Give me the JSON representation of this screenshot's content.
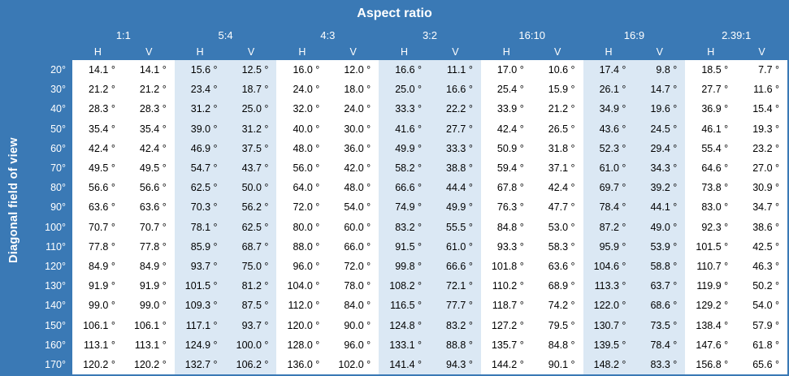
{
  "colors": {
    "header_blue": "#3A79B5",
    "band_light_blue": "#DBE8F4",
    "band_white": "#FFFFFF",
    "body_text": "#000000",
    "header_text": "#FFFFFF"
  },
  "chart_data": {
    "type": "table",
    "title": "Aspect ratio",
    "row_axis_label": "Diagonal field of view",
    "column_groups": [
      "1:1",
      "5:4",
      "4:3",
      "3:2",
      "16:10",
      "16:9",
      "2.39:1"
    ],
    "subcolumns": [
      "H",
      "V"
    ],
    "row_labels": [
      "20°",
      "30°",
      "40°",
      "50°",
      "60°",
      "70°",
      "80°",
      "90°",
      "100°",
      "110°",
      "120°",
      "130°",
      "140°",
      "150°",
      "160°",
      "170°"
    ],
    "rows": [
      [
        "14.1 °",
        "14.1 °",
        "15.6 °",
        "12.5 °",
        "16.0 °",
        "12.0 °",
        "16.6 °",
        "11.1 °",
        "17.0 °",
        "10.6 °",
        "17.4 °",
        "9.8 °",
        "18.5 °",
        "7.7 °"
      ],
      [
        "21.2 °",
        "21.2 °",
        "23.4 °",
        "18.7 °",
        "24.0 °",
        "18.0 °",
        "25.0 °",
        "16.6 °",
        "25.4 °",
        "15.9 °",
        "26.1 °",
        "14.7 °",
        "27.7 °",
        "11.6 °"
      ],
      [
        "28.3 °",
        "28.3 °",
        "31.2 °",
        "25.0 °",
        "32.0 °",
        "24.0 °",
        "33.3 °",
        "22.2 °",
        "33.9 °",
        "21.2 °",
        "34.9 °",
        "19.6 °",
        "36.9 °",
        "15.4 °"
      ],
      [
        "35.4 °",
        "35.4 °",
        "39.0 °",
        "31.2 °",
        "40.0 °",
        "30.0 °",
        "41.6 °",
        "27.7 °",
        "42.4 °",
        "26.5 °",
        "43.6 °",
        "24.5 °",
        "46.1 °",
        "19.3 °"
      ],
      [
        "42.4 °",
        "42.4 °",
        "46.9 °",
        "37.5 °",
        "48.0 °",
        "36.0 °",
        "49.9 °",
        "33.3 °",
        "50.9 °",
        "31.8 °",
        "52.3 °",
        "29.4 °",
        "55.4 °",
        "23.2 °"
      ],
      [
        "49.5 °",
        "49.5 °",
        "54.7 °",
        "43.7 °",
        "56.0 °",
        "42.0 °",
        "58.2 °",
        "38.8 °",
        "59.4 °",
        "37.1 °",
        "61.0 °",
        "34.3 °",
        "64.6 °",
        "27.0 °"
      ],
      [
        "56.6 °",
        "56.6 °",
        "62.5 °",
        "50.0 °",
        "64.0 °",
        "48.0 °",
        "66.6 °",
        "44.4 °",
        "67.8 °",
        "42.4 °",
        "69.7 °",
        "39.2 °",
        "73.8 °",
        "30.9 °"
      ],
      [
        "63.6 °",
        "63.6 °",
        "70.3 °",
        "56.2 °",
        "72.0 °",
        "54.0 °",
        "74.9 °",
        "49.9 °",
        "76.3 °",
        "47.7 °",
        "78.4 °",
        "44.1 °",
        "83.0 °",
        "34.7 °"
      ],
      [
        "70.7 °",
        "70.7 °",
        "78.1 °",
        "62.5 °",
        "80.0 °",
        "60.0 °",
        "83.2 °",
        "55.5 °",
        "84.8 °",
        "53.0 °",
        "87.2 °",
        "49.0 °",
        "92.3 °",
        "38.6 °"
      ],
      [
        "77.8 °",
        "77.8 °",
        "85.9 °",
        "68.7 °",
        "88.0 °",
        "66.0 °",
        "91.5 °",
        "61.0 °",
        "93.3 °",
        "58.3 °",
        "95.9 °",
        "53.9 °",
        "101.5 °",
        "42.5 °"
      ],
      [
        "84.9 °",
        "84.9 °",
        "93.7 °",
        "75.0 °",
        "96.0 °",
        "72.0 °",
        "99.8 °",
        "66.6 °",
        "101.8 °",
        "63.6 °",
        "104.6 °",
        "58.8 °",
        "110.7 °",
        "46.3 °"
      ],
      [
        "91.9 °",
        "91.9 °",
        "101.5 °",
        "81.2 °",
        "104.0 °",
        "78.0 °",
        "108.2 °",
        "72.1 °",
        "110.2 °",
        "68.9 °",
        "113.3 °",
        "63.7 °",
        "119.9 °",
        "50.2 °"
      ],
      [
        "99.0 °",
        "99.0 °",
        "109.3 °",
        "87.5 °",
        "112.0 °",
        "84.0 °",
        "116.5 °",
        "77.7 °",
        "118.7 °",
        "74.2 °",
        "122.0 °",
        "68.6 °",
        "129.2 °",
        "54.0 °"
      ],
      [
        "106.1 °",
        "106.1 °",
        "117.1 °",
        "93.7 °",
        "120.0 °",
        "90.0 °",
        "124.8 °",
        "83.2 °",
        "127.2 °",
        "79.5 °",
        "130.7 °",
        "73.5 °",
        "138.4 °",
        "57.9 °"
      ],
      [
        "113.1 °",
        "113.1 °",
        "124.9 °",
        "100.0 °",
        "128.0 °",
        "96.0 °",
        "133.1 °",
        "88.8 °",
        "135.7 °",
        "84.8 °",
        "139.5 °",
        "78.4 °",
        "147.6 °",
        "61.8 °"
      ],
      [
        "120.2 °",
        "120.2 °",
        "132.7 °",
        "106.2 °",
        "136.0 °",
        "102.0 °",
        "141.4 °",
        "94.3 °",
        "144.2 °",
        "90.1 °",
        "148.2 °",
        "83.3 °",
        "156.8 °",
        "65.6 °"
      ]
    ]
  }
}
